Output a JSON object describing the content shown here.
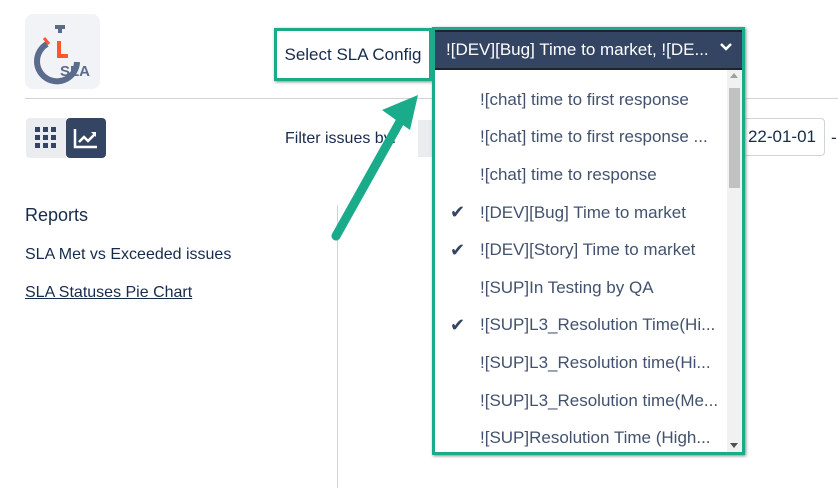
{
  "logo": {
    "text": "SLA",
    "accent": "#ff5630"
  },
  "view_toggle": {
    "grid_icon": "grid-icon",
    "chart_icon": "trending-up-icon",
    "active": "chart"
  },
  "config": {
    "label": "Select SLA Config",
    "selected": "![DEV][Bug] Time to market, ![DE...",
    "options": [
      {
        "label": "![chat] time to first response",
        "checked": false
      },
      {
        "label": "![chat] time to first response ...",
        "checked": false
      },
      {
        "label": "![chat] time to response",
        "checked": false
      },
      {
        "label": "![DEV][Bug] Time to market",
        "checked": true
      },
      {
        "label": "![DEV][Story] Time to market",
        "checked": true
      },
      {
        "label": "![SUP]In Testing by QA",
        "checked": false
      },
      {
        "label": "![SUP]L3_Resolution Time(Hi...",
        "checked": true
      },
      {
        "label": "![SUP]L3_Resolution time(Hi...",
        "checked": false
      },
      {
        "label": "![SUP]L3_Resolution time(Me...",
        "checked": false
      },
      {
        "label": "![SUP]Resolution Time (High...",
        "checked": false
      }
    ]
  },
  "filter": {
    "label": "Filter issues by:",
    "date_from": "22-01-01",
    "separator": "-"
  },
  "reports": {
    "heading": "Reports",
    "items": [
      "SLA Met vs Exceeded issues",
      "SLA Statuses Pie Chart"
    ]
  },
  "colors": {
    "highlight": "#1aab8b",
    "primary": "#344563"
  }
}
